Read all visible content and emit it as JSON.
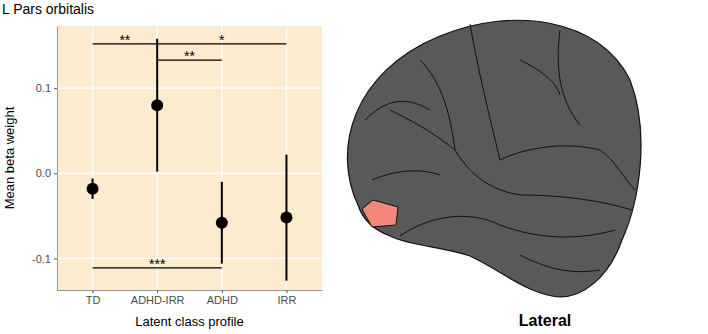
{
  "chart_data": {
    "type": "errorbar",
    "title": "L Pars orbitalis",
    "x_label": "Latent class profile",
    "y_label": "Mean beta weight",
    "categories": [
      "TD",
      "ADHD-IRR",
      "ADHD",
      "IRR"
    ],
    "values": [
      -0.018,
      0.08,
      -0.058,
      -0.052
    ],
    "errors": [
      0.012,
      0.078,
      0.048,
      0.074
    ],
    "color": "#000000",
    "ylim": [
      -0.137,
      0.173
    ],
    "yticks": [
      -0.1,
      {
        "value": 0,
        "label": "0.0"
      },
      0.1
    ],
    "grid": true,
    "annotations": [
      {
        "from": 0,
        "to": 1,
        "y": 0.152,
        "label": "**"
      },
      {
        "from": 1,
        "to": 3,
        "y": 0.152,
        "label": "*"
      },
      {
        "from": 1,
        "to": 2,
        "y": 0.133,
        "label": "**"
      },
      {
        "from": 0,
        "to": 2,
        "y": -0.111,
        "label": "***"
      }
    ]
  },
  "brain_view": {
    "label": "Lateral"
  }
}
